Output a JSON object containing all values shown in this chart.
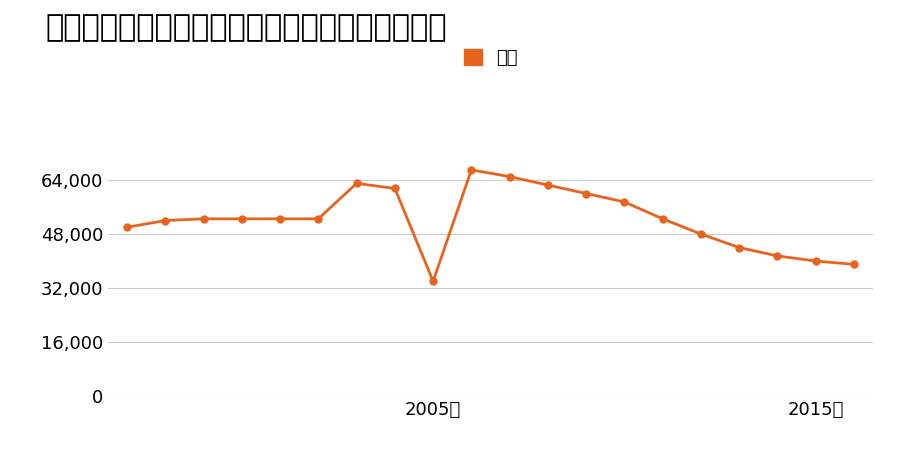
{
  "title": "青森県青森市沖館４丁目１５５番３０の地価推移",
  "legend_label": "価格",
  "line_color": "#e8641e",
  "marker_color": "#e8641e",
  "background_color": "#ffffff",
  "years": [
    1997,
    1998,
    1999,
    2000,
    2001,
    2002,
    2003,
    2004,
    2005,
    2006,
    2007,
    2008,
    2009,
    2010,
    2011,
    2012,
    2013,
    2014,
    2015,
    2016
  ],
  "values": [
    50000,
    52000,
    52500,
    52500,
    52500,
    52500,
    63000,
    61500,
    34000,
    67000,
    65000,
    62500,
    60000,
    57500,
    52500,
    48000,
    44000,
    41500,
    40000,
    39000
  ],
  "ylim": [
    0,
    80000
  ],
  "yticks": [
    0,
    16000,
    32000,
    48000,
    64000
  ],
  "ytick_labels": [
    "0",
    "16,000",
    "32,000",
    "48,000",
    "64,000"
  ],
  "xlabel_ticks": [
    2005,
    2015
  ],
  "xlabel_tick_labels": [
    "2005年",
    "2015年"
  ],
  "grid_color": "#cccccc",
  "title_fontsize": 22,
  "legend_fontsize": 13,
  "tick_fontsize": 13
}
